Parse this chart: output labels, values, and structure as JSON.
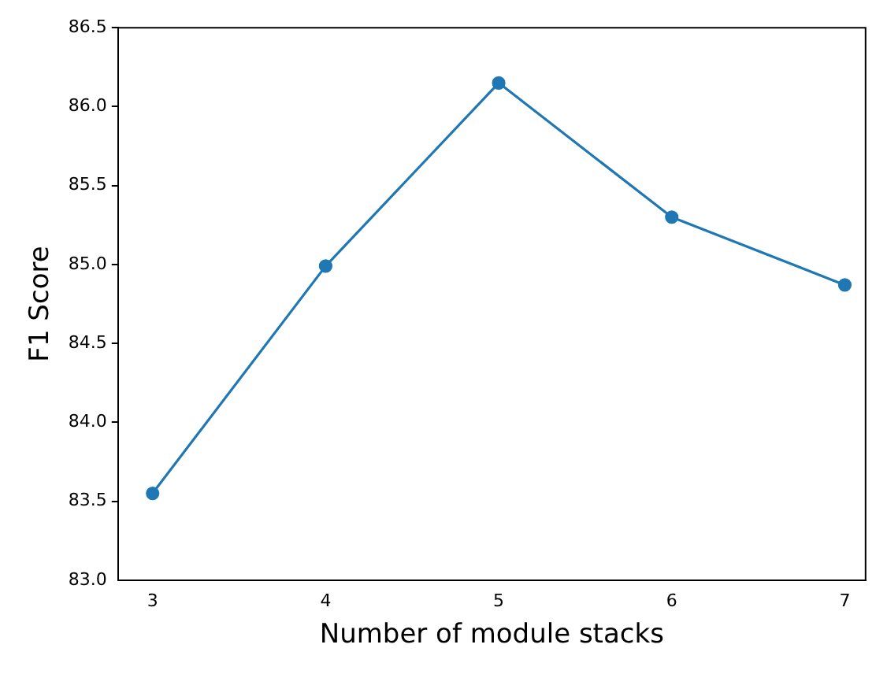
{
  "chart_data": {
    "type": "line",
    "xlabel": "Number of module stacks",
    "ylabel": "F1 Score",
    "x": [
      3,
      4,
      5,
      6,
      7
    ],
    "series": [
      {
        "color": "#1f77b4",
        "values": [
          83.55,
          84.99,
          86.15,
          85.3,
          84.87
        ]
      }
    ],
    "xlim": [
      2.8,
      7.12
    ],
    "xticks": [
      3,
      4,
      5,
      6,
      7
    ],
    "ylim": [
      83.0,
      86.5
    ],
    "yticks": [
      {
        "value": 83.0,
        "label": "83.0"
      },
      {
        "value": 83.5,
        "label": "83.5"
      },
      {
        "value": 84.0,
        "label": "84.0"
      },
      {
        "value": 84.5,
        "label": "84.5"
      },
      {
        "value": 85.0,
        "label": "85.0"
      },
      {
        "value": 85.5,
        "label": "85.5"
      },
      {
        "value": 86.0,
        "label": "86.0"
      },
      {
        "value": 86.5,
        "label": "86.5"
      }
    ],
    "grid": false,
    "legend": false,
    "marker": "circle",
    "line_style": "solid"
  }
}
